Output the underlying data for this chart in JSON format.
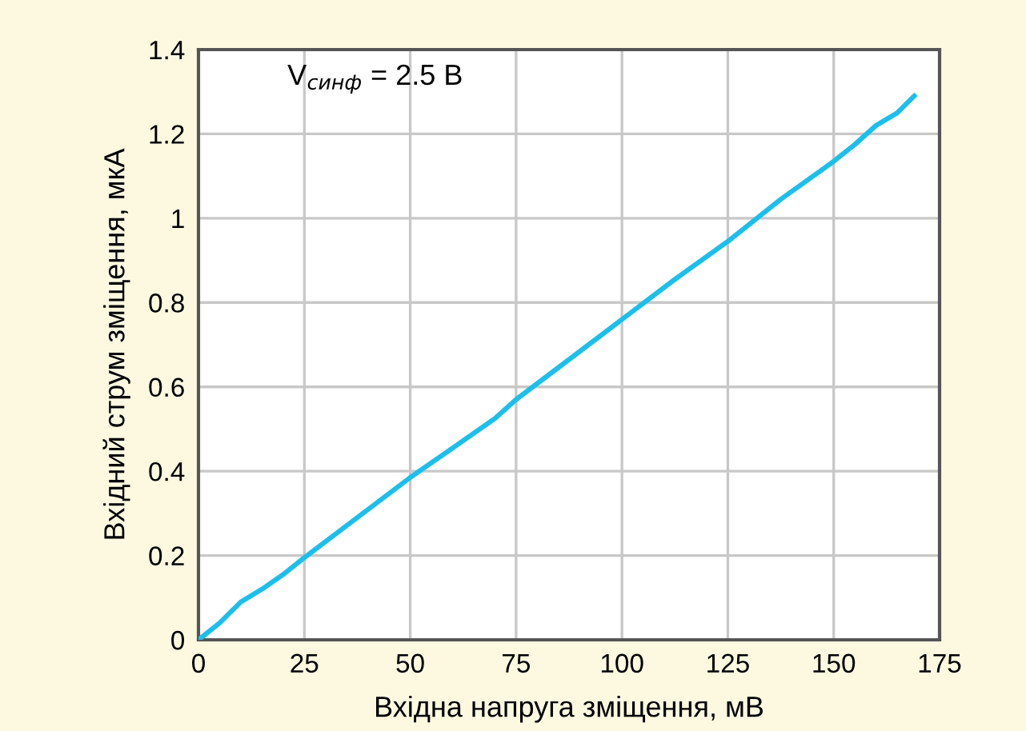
{
  "chart_data": {
    "type": "line",
    "xlabel": "Вхідна напруга зміщення, мВ",
    "ylabel": "Вхідний струм зміщення, мкА",
    "annotations": [
      "V$_{синф}$ = 2.5 В"
    ],
    "x": [
      0,
      5,
      10,
      15,
      20,
      25,
      37.5,
      50,
      60,
      70,
      75,
      87.5,
      100,
      112.5,
      125,
      137.5,
      150,
      155,
      160,
      165,
      169
    ],
    "series": [
      {
        "color": "#1cbfec",
        "values": [
          0,
          0.04,
          0.09,
          0.12,
          0.155,
          0.195,
          0.29,
          0.385,
          0.455,
          0.525,
          0.57,
          0.665,
          0.76,
          0.855,
          0.945,
          1.045,
          1.135,
          1.175,
          1.22,
          1.25,
          1.29
        ]
      }
    ],
    "xlim": [
      0,
      175
    ],
    "xticks": [
      0,
      25,
      50,
      75,
      100,
      125,
      150,
      175
    ],
    "ylim": [
      0,
      1.4
    ],
    "yticks": [
      0,
      0.2,
      0.4,
      0.6,
      0.8,
      1,
      1.2,
      1.4
    ],
    "grid": true,
    "legend": false,
    "marker": "none",
    "line_style": "solid"
  }
}
